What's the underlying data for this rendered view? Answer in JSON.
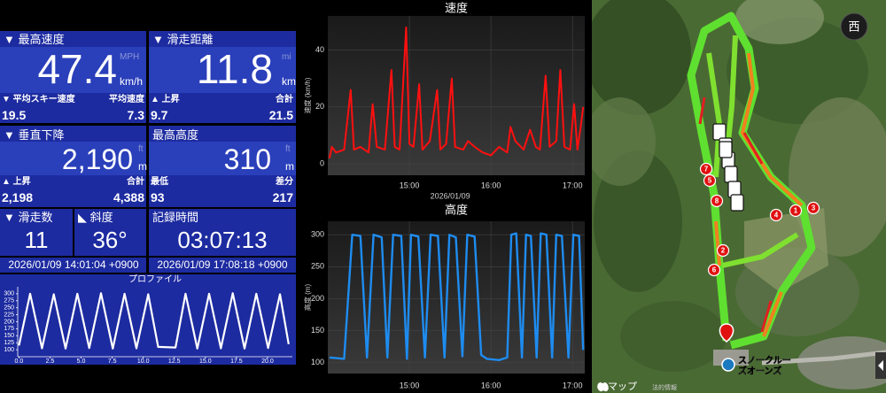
{
  "stats": {
    "max_speed": {
      "label": "▼ 最高速度",
      "value": "47.4",
      "unit_alt": "MPH",
      "unit": "km/h"
    },
    "avg_ski_speed": {
      "label": "▼ 平均スキー速度",
      "value": "19.5"
    },
    "avg_speed": {
      "label": "平均速度",
      "value": "7.3"
    },
    "distance": {
      "label": "▼ 滑走距離",
      "value": "11.8",
      "unit_alt": "mi",
      "unit": "km"
    },
    "distance_ascent": {
      "label": "▲ 上昇",
      "value": "9.7"
    },
    "distance_total": {
      "label": "合計",
      "value": "21.5"
    },
    "vertical_descent": {
      "label": "▼ 垂直下降",
      "value": "2,190",
      "unit_alt": "ft",
      "unit": "m"
    },
    "vertical_ascent": {
      "label": "▲ 上昇",
      "value": "2,198"
    },
    "vertical_total": {
      "label": "合計",
      "value": "4,388"
    },
    "max_altitude": {
      "label": "最高高度",
      "value": "310",
      "unit_alt": "ft",
      "unit": "m"
    },
    "min_altitude": {
      "label": "最低",
      "value": "93"
    },
    "altitude_diff": {
      "label": "差分",
      "value": "217"
    },
    "runs": {
      "label": "▼ 滑走数",
      "value": "11"
    },
    "slope": {
      "label": "◣ 斜度",
      "value": "36°"
    },
    "duration": {
      "label": "記録時間",
      "value": "03:07:13"
    },
    "start": "2026/01/09 14:01:04 +0900",
    "end": "2026/01/09 17:08:18 +0900"
  },
  "profile_chart": {
    "type": "line",
    "title": "プロファイル",
    "color": "#ffffff",
    "x": [
      0,
      0.9,
      1.85,
      2.8,
      3.75,
      4.7,
      5.65,
      6.6,
      7.55,
      8.5,
      9.45,
      10.4,
      11.2,
      12.6,
      13.4,
      14.35,
      15.3,
      16.25,
      17.2,
      18.15,
      19.1,
      20.05,
      21.0,
      21.7
    ],
    "values": [
      115,
      300,
      105,
      298,
      104,
      300,
      106,
      302,
      104,
      300,
      105,
      298,
      110,
      108,
      300,
      104,
      300,
      105,
      302,
      104,
      300,
      106,
      298,
      120
    ],
    "xlim": [
      -0.1,
      22
    ],
    "ylim": [
      75,
      325
    ],
    "xticks": [
      {
        "value": 0,
        "label": "0.0"
      },
      2.5,
      {
        "value": 5,
        "label": "5.0"
      },
      7.5,
      {
        "value": 10,
        "label": "10.0"
      },
      12.5,
      {
        "value": 15,
        "label": "15.0"
      },
      17.5,
      {
        "value": 20,
        "label": "20.0"
      }
    ],
    "yticks": [
      100,
      125,
      150,
      175,
      200,
      225,
      250,
      275,
      300
    ],
    "grid": false
  },
  "speed_chart": {
    "type": "line",
    "title": "速度",
    "y_label": "速度 (km/h)",
    "x_date": "2026/01/09",
    "color": "#ff1010",
    "x": [
      14.02,
      14.05,
      14.1,
      14.2,
      14.28,
      14.32,
      14.4,
      14.5,
      14.55,
      14.6,
      14.7,
      14.78,
      14.82,
      14.88,
      14.96,
      15.0,
      15.05,
      15.12,
      15.16,
      15.25,
      15.34,
      15.38,
      15.45,
      15.52,
      15.56,
      15.66,
      15.72,
      15.8,
      15.9,
      16.0,
      16.1,
      16.2,
      16.24,
      16.3,
      16.4,
      16.48,
      16.55,
      16.6,
      16.67,
      16.72,
      16.8,
      16.85,
      16.9,
      16.97,
      17.02,
      17.06,
      17.1,
      17.13
    ],
    "values": [
      2,
      6,
      4,
      5,
      26,
      5,
      6,
      4,
      21,
      6,
      5,
      33,
      6,
      5,
      48,
      7,
      6,
      28,
      5,
      8,
      26,
      5,
      7,
      30,
      6,
      5,
      8,
      6,
      4,
      3,
      6,
      4,
      13,
      8,
      5,
      12,
      6,
      5,
      31,
      6,
      8,
      33,
      6,
      5,
      21,
      5,
      13,
      20
    ],
    "xlim": [
      14.0,
      17.15
    ],
    "ylim": [
      -4,
      52
    ],
    "xticks": [
      {
        "value": 15,
        "label": "15:00"
      },
      {
        "value": 16,
        "label": "16:00"
      },
      {
        "value": 17,
        "label": "17:00"
      }
    ],
    "yticks": [
      0,
      20,
      40
    ],
    "grid": true
  },
  "altitude_chart": {
    "type": "line",
    "title": "高度",
    "y_label": "高度 (m)",
    "color": "#1e8cf0",
    "x": [
      14.02,
      14.2,
      14.3,
      14.4,
      14.48,
      14.56,
      14.66,
      14.73,
      14.8,
      14.9,
      14.97,
      15.02,
      15.11,
      15.19,
      15.26,
      15.35,
      15.43,
      15.49,
      15.57,
      15.65,
      15.71,
      15.8,
      15.88,
      15.95,
      16.1,
      16.2,
      16.25,
      16.31,
      16.38,
      16.43,
      16.49,
      16.56,
      16.61,
      16.68,
      16.75,
      16.8,
      16.87,
      16.95,
      17.01,
      17.08,
      17.13
    ],
    "values": [
      108,
      106,
      300,
      298,
      108,
      300,
      296,
      108,
      300,
      298,
      106,
      300,
      297,
      108,
      300,
      298,
      108,
      300,
      296,
      110,
      300,
      297,
      112,
      106,
      104,
      108,
      300,
      302,
      108,
      300,
      298,
      108,
      302,
      300,
      108,
      300,
      298,
      108,
      300,
      298,
      120
    ],
    "xlim": [
      14.0,
      17.15
    ],
    "ylim": [
      83,
      321
    ],
    "xticks": [
      {
        "value": 15,
        "label": "15:00"
      },
      {
        "value": 16,
        "label": "16:00"
      },
      {
        "value": 17,
        "label": "17:00"
      }
    ],
    "yticks": [
      100,
      150,
      200,
      250,
      300
    ],
    "grid": true
  },
  "map": {
    "compass": "西",
    "markers": [
      "1",
      "2",
      "3",
      "4",
      "5",
      "6",
      "7",
      "8"
    ],
    "place_label": [
      "スノークルー",
      "ズオーンズ"
    ],
    "attribution": " マップ",
    "legal": "法的情報"
  }
}
